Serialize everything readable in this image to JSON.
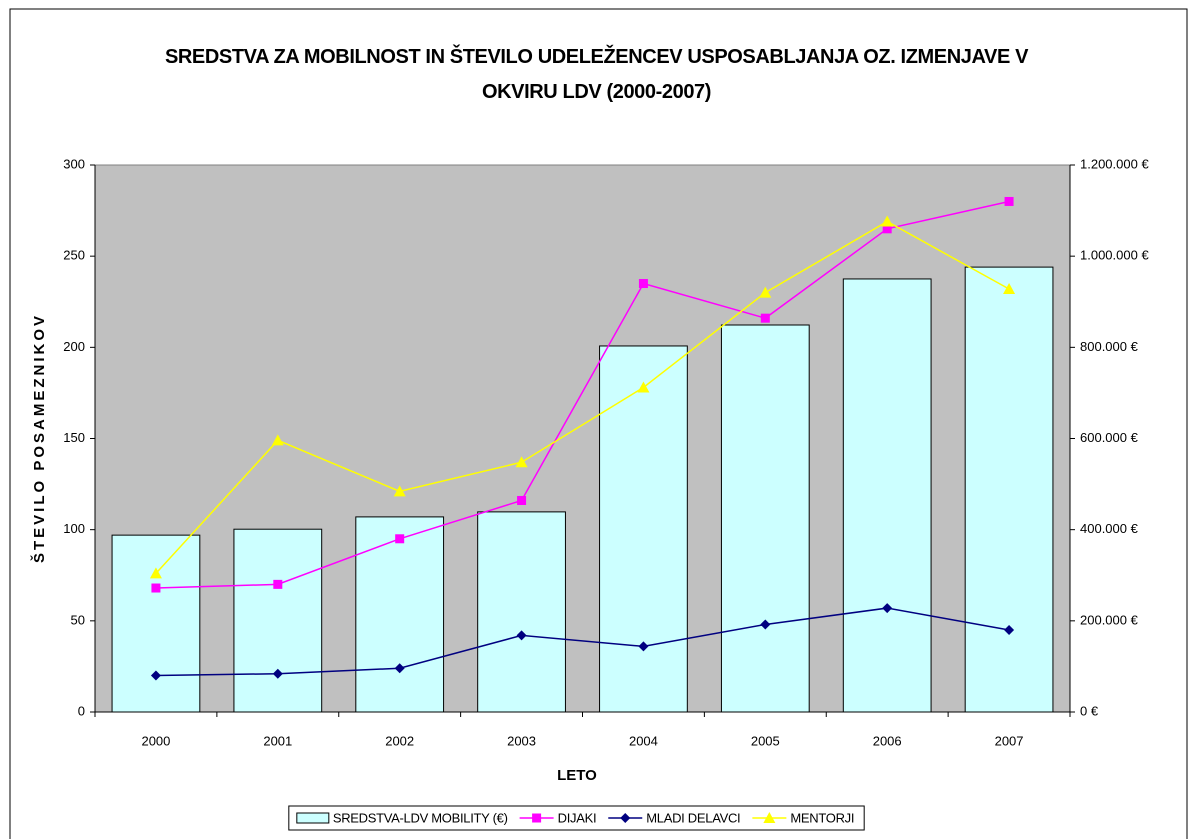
{
  "chart_data": {
    "type": "bar",
    "title": "SREDSTVA ZA MOBILNOST IN ŠTEVILO UDELEŽENCEV USPOSABLJANJA OZ. IZMENJAVE V OKVIRU LDV (2000-2007)",
    "xlabel": "LETO",
    "ylabel": "ŠTEVILO POSAMEZNIKOV",
    "categories": [
      "2000",
      "2001",
      "2002",
      "2003",
      "2004",
      "2005",
      "2006",
      "2007"
    ],
    "series": [
      {
        "name": "SREDSTVA-LDV MOBILITY (€)",
        "type": "bar",
        "axis": "y2",
        "color": "#ccffff",
        "values": [
          388000,
          401000,
          428000,
          439000,
          803000,
          849000,
          950000,
          976000
        ]
      },
      {
        "name": "DIJAKI",
        "type": "line",
        "marker": "square",
        "color": "#ff00ff",
        "values": [
          68,
          70,
          95,
          116,
          235,
          216,
          265,
          280
        ]
      },
      {
        "name": "MLADI DELAVCI",
        "type": "line",
        "marker": "diamond",
        "color": "#000080",
        "values": [
          20,
          21,
          24,
          42,
          36,
          48,
          57,
          45
        ]
      },
      {
        "name": "MENTORJI",
        "type": "line",
        "marker": "triangle",
        "color": "#ffff00",
        "values": [
          76,
          149,
          121,
          137,
          178,
          230,
          269,
          232
        ]
      }
    ],
    "ylim": [
      0,
      300
    ],
    "yticks": [
      0,
      50,
      100,
      150,
      200,
      250,
      300
    ],
    "y2lim": [
      0,
      1200000
    ],
    "y2ticks": [
      {
        "value": 0,
        "label": "0 €"
      },
      {
        "value": 200000,
        "label": "200.000 €"
      },
      {
        "value": 400000,
        "label": "400.000 €"
      },
      {
        "value": 600000,
        "label": "600.000 €"
      },
      {
        "value": 800000,
        "label": "800.000 €"
      },
      {
        "value": 1000000,
        "label": "1.000.000 €"
      },
      {
        "value": 1200000,
        "label": "1.200.000 €"
      }
    ],
    "plot_background": "#c0c0c0",
    "legend": "bottom"
  }
}
